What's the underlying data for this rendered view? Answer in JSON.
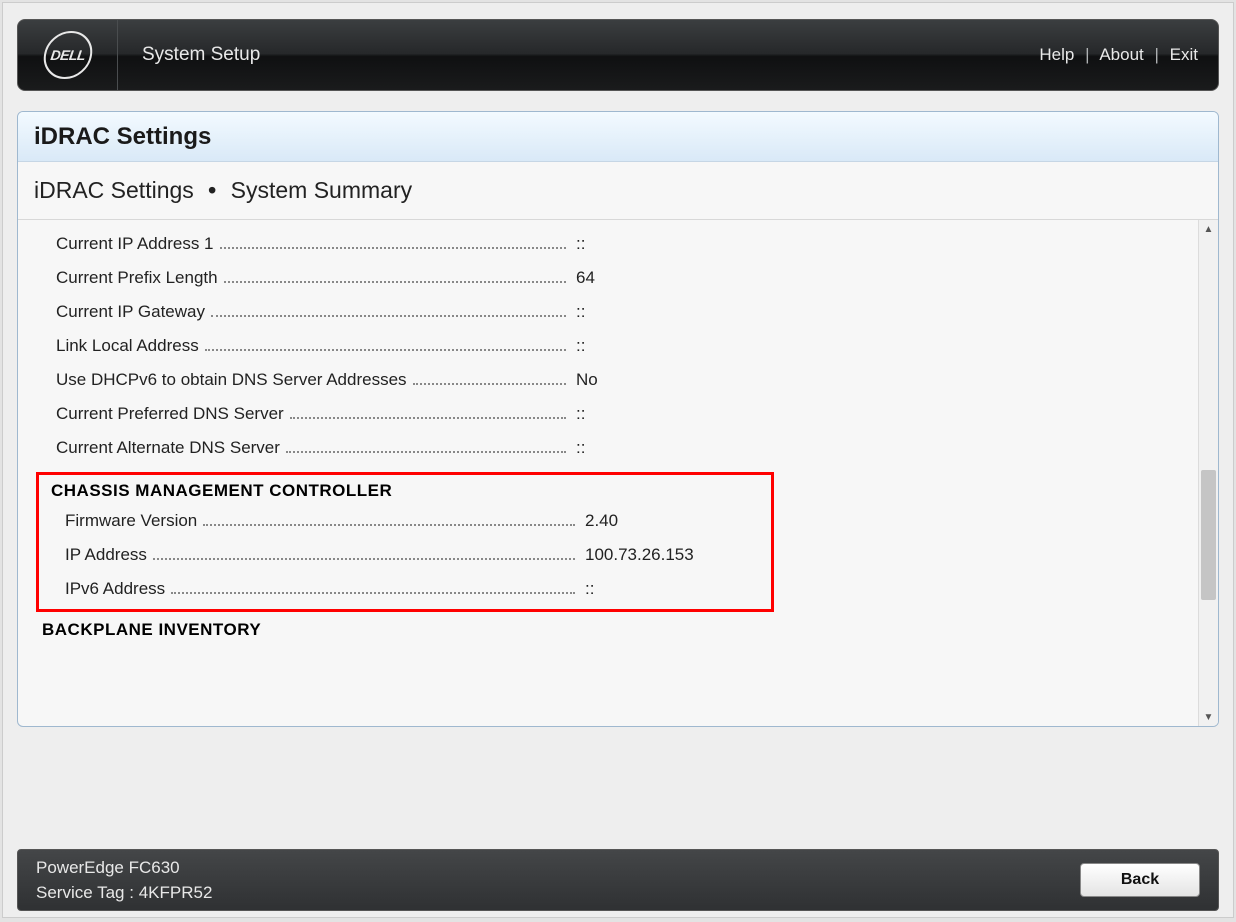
{
  "brand": "DELL",
  "header": {
    "title": "System Setup",
    "links": {
      "help": "Help",
      "about": "About",
      "exit": "Exit"
    }
  },
  "panel": {
    "title": "iDRAC Settings",
    "breadcrumb_a": "iDRAC Settings",
    "breadcrumb_b": "System Summary"
  },
  "rows": [
    {
      "label": "Current IP Address 1",
      "value": "::"
    },
    {
      "label": "Current Prefix Length",
      "value": "64"
    },
    {
      "label": "Current IP Gateway",
      "value": "::"
    },
    {
      "label": "Link Local Address",
      "value": "::"
    },
    {
      "label": "Use DHCPv6 to obtain DNS Server Addresses",
      "value": "No"
    },
    {
      "label": "Current Preferred DNS Server",
      "value": "::"
    },
    {
      "label": "Current Alternate DNS Server",
      "value": "::"
    }
  ],
  "cmc": {
    "heading": "CHASSIS MANAGEMENT CONTROLLER",
    "rows": [
      {
        "label": "Firmware Version",
        "value": "2.40"
      },
      {
        "label": "IP Address",
        "value": "100.73.26.153"
      },
      {
        "label": "IPv6 Address",
        "value": "::"
      }
    ]
  },
  "backplane_heading": "BACKPLANE INVENTORY",
  "footer": {
    "model": "PowerEdge FC630",
    "service_tag_label": "Service Tag :",
    "service_tag_value": "4KFPR52",
    "back": "Back"
  },
  "colors": {
    "highlight_border": "#ff0000",
    "page_bg": "#eeeeee",
    "panel_border": "#9fb8cf"
  }
}
